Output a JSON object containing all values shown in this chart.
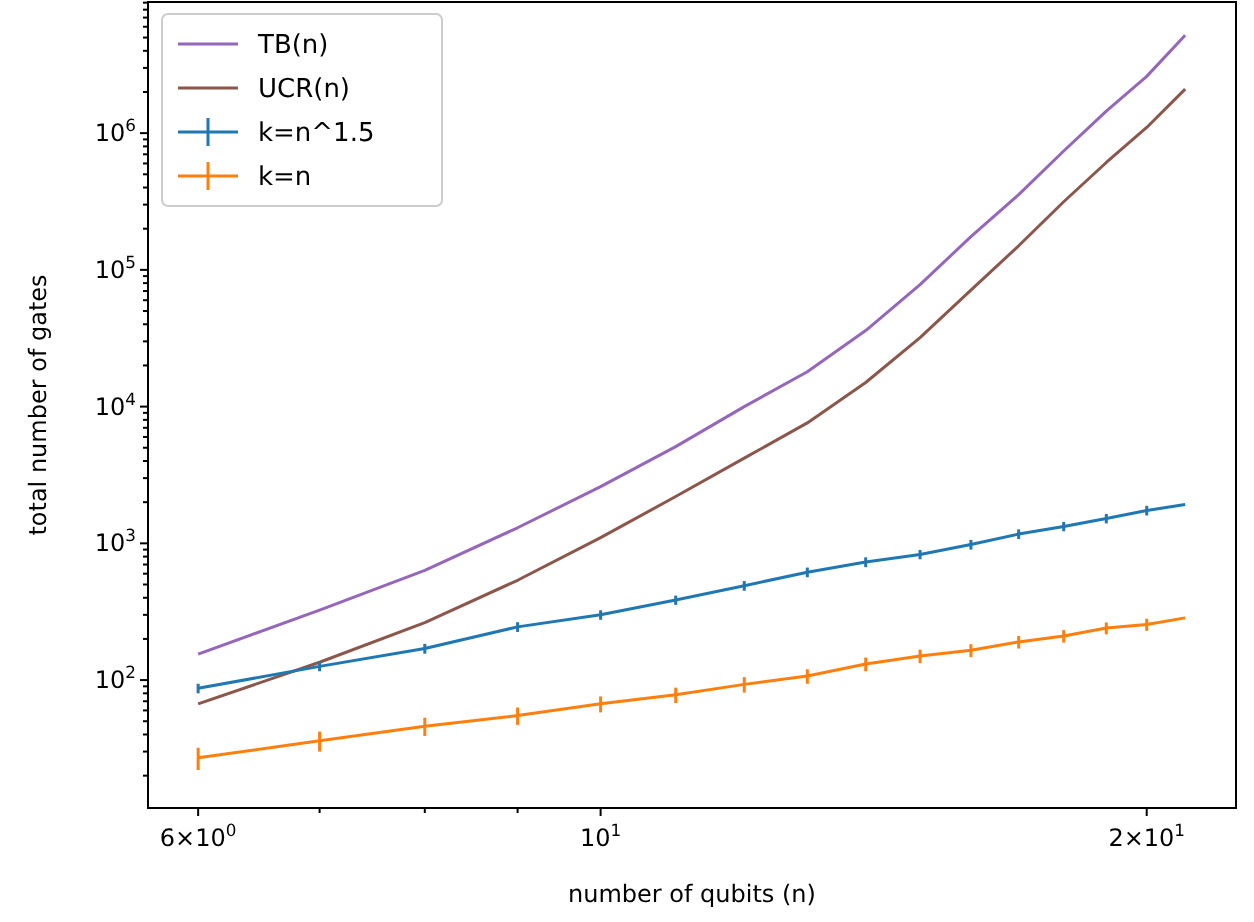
{
  "chart_data": {
    "type": "line",
    "xlabel": "number of qubits (n)",
    "ylabel": "total number of gates",
    "log": "xy",
    "legend": "top left",
    "grid": false,
    "marker": "none",
    "line_style": "solid",
    "x": [
      6,
      7,
      8,
      9,
      10,
      11,
      12,
      13,
      14,
      15,
      16,
      17,
      18,
      19,
      20,
      21
    ],
    "xlim": [
      5.63,
      22.4
    ],
    "ylim": [
      11.6,
      9100000
    ],
    "xticks": [
      {
        "value": 6,
        "label": "6×10$^{0}$"
      },
      {
        "value": 7,
        "label": null
      },
      {
        "value": 8,
        "label": null
      },
      {
        "value": 9,
        "label": null
      },
      {
        "value": 10,
        "label": "10$^{1}$"
      },
      {
        "value": 20,
        "label": "2×10$^{1}$"
      }
    ],
    "yticks": [
      {
        "value": 20,
        "label": null
      },
      {
        "value": 30,
        "label": null
      },
      {
        "value": 40,
        "label": null
      },
      {
        "value": 50,
        "label": null
      },
      {
        "value": 60,
        "label": null
      },
      {
        "value": 70,
        "label": null
      },
      {
        "value": 80,
        "label": null
      },
      {
        "value": 90,
        "label": null
      },
      {
        "value": 100,
        "label": "10$^{2}$"
      },
      {
        "value": 200,
        "label": null
      },
      {
        "value": 300,
        "label": null
      },
      {
        "value": 400,
        "label": null
      },
      {
        "value": 500,
        "label": null
      },
      {
        "value": 600,
        "label": null
      },
      {
        "value": 700,
        "label": null
      },
      {
        "value": 800,
        "label": null
      },
      {
        "value": 900,
        "label": null
      },
      {
        "value": 1000,
        "label": "10$^{3}$"
      },
      {
        "value": 2000,
        "label": null
      },
      {
        "value": 3000,
        "label": null
      },
      {
        "value": 4000,
        "label": null
      },
      {
        "value": 5000,
        "label": null
      },
      {
        "value": 6000,
        "label": null
      },
      {
        "value": 7000,
        "label": null
      },
      {
        "value": 8000,
        "label": null
      },
      {
        "value": 9000,
        "label": null
      },
      {
        "value": 10000,
        "label": "10$^{4}$"
      },
      {
        "value": 20000,
        "label": null
      },
      {
        "value": 30000,
        "label": null
      },
      {
        "value": 40000,
        "label": null
      },
      {
        "value": 50000,
        "label": null
      },
      {
        "value": 60000,
        "label": null
      },
      {
        "value": 70000,
        "label": null
      },
      {
        "value": 80000,
        "label": null
      },
      {
        "value": 90000,
        "label": null
      },
      {
        "value": 100000,
        "label": "10$^{5}$"
      },
      {
        "value": 200000,
        "label": null
      },
      {
        "value": 300000,
        "label": null
      },
      {
        "value": 400000,
        "label": null
      },
      {
        "value": 500000,
        "label": null
      },
      {
        "value": 600000,
        "label": null
      },
      {
        "value": 700000,
        "label": null
      },
      {
        "value": 800000,
        "label": null
      },
      {
        "value": 900000,
        "label": null
      },
      {
        "value": 1000000,
        "label": "10$^{6}$"
      },
      {
        "value": 2000000,
        "label": null
      },
      {
        "value": 3000000,
        "label": null
      },
      {
        "value": 4000000,
        "label": null
      },
      {
        "value": 5000000,
        "label": null
      },
      {
        "value": 6000000,
        "label": null
      },
      {
        "value": 7000000,
        "label": null
      },
      {
        "value": 8000000,
        "label": null
      },
      {
        "value": 9000000,
        "label": null
      }
    ],
    "series": [
      {
        "name": "TB(n)",
        "color": "#9467bd",
        "values": [
          155,
          325,
          635,
          1300,
          2600,
          5100,
          10000,
          18000,
          36000,
          78000,
          175000,
          355000,
          740000,
          1450000,
          2600000,
          5200000
        ]
      },
      {
        "name": "UCR(n)",
        "color": "#8c564b",
        "values": [
          67,
          135,
          263,
          537,
          1100,
          2200,
          4200,
          7600,
          15000,
          32000,
          71000,
          150000,
          315000,
          610000,
          1100000,
          2100000
        ]
      },
      {
        "name": "k=n^1.5",
        "color": "#1f77b4",
        "values": [
          87,
          126,
          170,
          245,
          300,
          385,
          490,
          615,
          730,
          830,
          980,
          1170,
          1330,
          1520,
          1740,
          1920
        ],
        "errors": [
          7,
          10,
          14,
          20,
          24,
          30,
          40,
          50,
          60,
          65,
          80,
          95,
          105,
          120,
          140,
          null
        ]
      },
      {
        "name": "k=n",
        "color": "#ff7f0e",
        "values": [
          27,
          36,
          46,
          55,
          67,
          78,
          93,
          107,
          131,
          150,
          165,
          190,
          210,
          240,
          255,
          285
        ],
        "errors": [
          5,
          6,
          7,
          8,
          9,
          10,
          12,
          13,
          15,
          17,
          18,
          20,
          22,
          24,
          26,
          null
        ]
      }
    ]
  }
}
